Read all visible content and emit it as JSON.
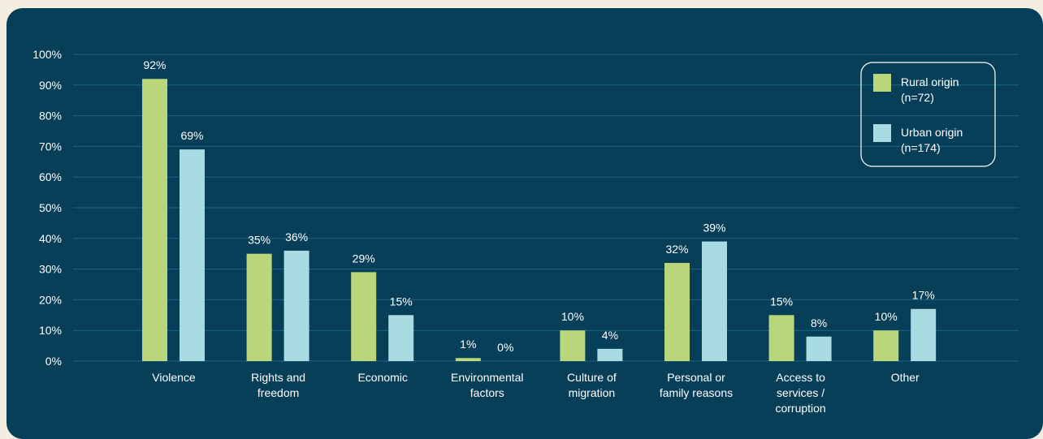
{
  "chart_data": {
    "type": "bar",
    "categories": [
      [
        "Violence"
      ],
      [
        "Rights and",
        "freedom"
      ],
      [
        "Economic"
      ],
      [
        "Environmental",
        "factors"
      ],
      [
        "Culture of",
        "migration"
      ],
      [
        "Personal or",
        "family reasons"
      ],
      [
        "Access to",
        "services /",
        "corruption"
      ],
      [
        "Other"
      ]
    ],
    "series": [
      {
        "name": [
          "Rural origin",
          "(n=72)"
        ],
        "color": "#b9d77a",
        "values": [
          92,
          35,
          29,
          1,
          10,
          32,
          15,
          10
        ]
      },
      {
        "name": [
          "Urban origin",
          "(n=174)"
        ],
        "color": "#a9dbe2",
        "values": [
          69,
          36,
          15,
          0,
          4,
          39,
          8,
          17
        ]
      }
    ],
    "ylim": [
      0,
      100
    ],
    "yticks": [
      0,
      10,
      20,
      30,
      40,
      50,
      60,
      70,
      80,
      90,
      100
    ],
    "tick_suffix": "%",
    "value_suffix": "%",
    "grid": true,
    "legend_position": "top-right",
    "colors": {
      "background": "#073e58",
      "grid": "#1d6585",
      "text": "#ffffff",
      "page": "#f3eedf"
    }
  }
}
